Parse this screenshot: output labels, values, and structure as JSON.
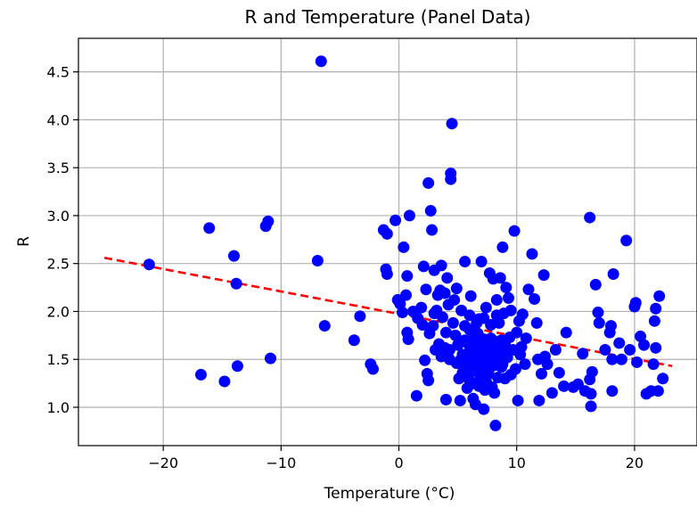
{
  "chart_data": {
    "type": "scatter",
    "title": "R and Temperature (Panel Data)",
    "xlabel": "Temperature (°C)",
    "ylabel": "R",
    "xlim": [
      -27.2,
      25.3
    ],
    "ylim": [
      0.6,
      4.85
    ],
    "xticks": [
      -20,
      -10,
      0,
      10,
      20
    ],
    "xtick_labels": [
      "−20",
      "−10",
      "0",
      "10",
      "20"
    ],
    "yticks": [
      1.0,
      1.5,
      2.0,
      2.5,
      3.0,
      3.5,
      4.0,
      4.5
    ],
    "ytick_labels": [
      "1.0",
      "1.5",
      "2.0",
      "2.5",
      "3.0",
      "3.5",
      "4.0",
      "4.5"
    ],
    "grid": true,
    "point_color": "#0000ff",
    "trend_color": "#ff0000",
    "trend_line": {
      "x": [
        -25.0,
        23.2
      ],
      "y": [
        2.56,
        1.43
      ]
    },
    "series": [
      {
        "points": [
          [
            -21.2,
            2.49
          ],
          [
            -16.8,
            1.34
          ],
          [
            -16.1,
            2.87
          ],
          [
            -14.8,
            1.27
          ],
          [
            -14.0,
            2.58
          ],
          [
            -13.8,
            2.29
          ],
          [
            -13.7,
            1.43
          ],
          [
            -11.3,
            2.89
          ],
          [
            -11.1,
            2.94
          ],
          [
            -10.9,
            1.51
          ],
          [
            -6.6,
            4.61
          ],
          [
            -6.9,
            2.53
          ],
          [
            -6.3,
            1.85
          ],
          [
            -3.8,
            1.7
          ],
          [
            -3.3,
            1.95
          ],
          [
            -2.4,
            1.45
          ],
          [
            -2.2,
            1.4
          ],
          [
            -1.3,
            2.85
          ],
          [
            -1.0,
            2.81
          ],
          [
            -1.1,
            2.44
          ],
          [
            -1.0,
            2.39
          ],
          [
            -0.3,
            2.95
          ],
          [
            -0.1,
            2.12
          ],
          [
            0.1,
            2.08
          ],
          [
            0.3,
            1.99
          ],
          [
            0.4,
            2.67
          ],
          [
            0.6,
            2.17
          ],
          [
            0.7,
            2.37
          ],
          [
            0.7,
            1.78
          ],
          [
            0.8,
            1.71
          ],
          [
            0.9,
            3.0
          ],
          [
            1.2,
            2.0
          ],
          [
            1.5,
            1.12
          ],
          [
            1.6,
            1.93
          ],
          [
            1.9,
            2.04
          ],
          [
            2.0,
            1.86
          ],
          [
            2.1,
            2.47
          ],
          [
            2.2,
            1.49
          ],
          [
            2.3,
            2.23
          ],
          [
            2.4,
            1.35
          ],
          [
            2.5,
            3.34
          ],
          [
            2.5,
            1.28
          ],
          [
            2.6,
            1.77
          ],
          [
            2.7,
            3.05
          ],
          [
            2.8,
            2.85
          ],
          [
            2.9,
            1.85
          ],
          [
            3.0,
            2.43
          ],
          [
            3.0,
            1.98
          ],
          [
            3.1,
            1.6
          ],
          [
            3.2,
            2.01
          ],
          [
            3.3,
            2.17
          ],
          [
            3.4,
            1.66
          ],
          [
            3.5,
            2.22
          ],
          [
            3.6,
            2.48
          ],
          [
            3.7,
            1.94
          ],
          [
            3.9,
            2.19
          ],
          [
            4.0,
            1.08
          ],
          [
            4.0,
            1.78
          ],
          [
            4.1,
            2.35
          ],
          [
            4.2,
            2.07
          ],
          [
            4.3,
            1.6
          ],
          [
            4.4,
            3.44
          ],
          [
            4.4,
            3.38
          ],
          [
            4.5,
            3.96
          ],
          [
            4.6,
            1.88
          ],
          [
            4.7,
            2.12
          ],
          [
            4.8,
            1.75
          ],
          [
            4.9,
            2.24
          ],
          [
            5.0,
            1.65
          ],
          [
            5.1,
            1.3
          ],
          [
            5.2,
            1.07
          ],
          [
            5.3,
            2.01
          ],
          [
            5.4,
            1.55
          ],
          [
            5.5,
            1.47
          ],
          [
            5.6,
            2.52
          ],
          [
            5.6,
            1.85
          ],
          [
            5.8,
            1.2
          ],
          [
            5.9,
            1.66
          ],
          [
            6.0,
            1.58
          ],
          [
            6.1,
            2.16
          ],
          [
            6.2,
            1.4
          ],
          [
            6.3,
            1.09
          ],
          [
            6.4,
            1.74
          ],
          [
            6.5,
            1.03
          ],
          [
            6.6,
            1.6
          ],
          [
            6.7,
            1.5
          ],
          [
            6.8,
            1.92
          ],
          [
            6.9,
            1.3
          ],
          [
            7.0,
            2.52
          ],
          [
            7.1,
            1.66
          ],
          [
            7.2,
            1.45
          ],
          [
            7.2,
            0.98
          ],
          [
            7.3,
            1.18
          ],
          [
            7.4,
            2.04
          ],
          [
            7.5,
            1.55
          ],
          [
            7.6,
            1.35
          ],
          [
            7.7,
            2.4
          ],
          [
            7.8,
            1.72
          ],
          [
            7.9,
            1.48
          ],
          [
            8.0,
            2.34
          ],
          [
            8.1,
            1.15
          ],
          [
            8.2,
            0.81
          ],
          [
            8.3,
            2.12
          ],
          [
            8.4,
            1.62
          ],
          [
            8.5,
            1.88
          ],
          [
            8.6,
            2.35
          ],
          [
            8.7,
            1.42
          ],
          [
            8.8,
            2.67
          ],
          [
            8.9,
            1.98
          ],
          [
            9.0,
            1.3
          ],
          [
            9.1,
            2.25
          ],
          [
            9.2,
            1.52
          ],
          [
            9.3,
            2.14
          ],
          [
            9.4,
            1.73
          ],
          [
            9.5,
            2.01
          ],
          [
            9.7,
            1.6
          ],
          [
            9.8,
            2.84
          ],
          [
            9.9,
            1.4
          ],
          [
            10.1,
            1.07
          ],
          [
            10.2,
            1.9
          ],
          [
            10.3,
            1.55
          ],
          [
            10.5,
            1.97
          ],
          [
            11.0,
            2.23
          ],
          [
            11.3,
            2.6
          ],
          [
            11.5,
            2.13
          ],
          [
            11.7,
            1.88
          ],
          [
            11.8,
            1.5
          ],
          [
            11.9,
            1.07
          ],
          [
            12.1,
            1.35
          ],
          [
            12.3,
            2.38
          ],
          [
            12.4,
            1.53
          ],
          [
            12.6,
            1.45
          ],
          [
            13.0,
            1.15
          ],
          [
            13.3,
            1.6
          ],
          [
            13.6,
            1.36
          ],
          [
            14.0,
            1.22
          ],
          [
            14.2,
            1.78
          ],
          [
            14.8,
            1.21
          ],
          [
            15.2,
            1.24
          ],
          [
            15.6,
            1.56
          ],
          [
            15.8,
            1.17
          ],
          [
            16.2,
            1.29
          ],
          [
            16.2,
            2.98
          ],
          [
            16.3,
            1.01
          ],
          [
            16.3,
            1.14
          ],
          [
            16.4,
            1.37
          ],
          [
            16.7,
            2.28
          ],
          [
            16.9,
            1.99
          ],
          [
            17.0,
            1.88
          ],
          [
            17.5,
            1.6
          ],
          [
            17.9,
            1.78
          ],
          [
            18.0,
            1.85
          ],
          [
            18.1,
            1.5
          ],
          [
            18.1,
            1.17
          ],
          [
            18.2,
            2.39
          ],
          [
            18.7,
            1.67
          ],
          [
            18.9,
            1.5
          ],
          [
            19.3,
            2.74
          ],
          [
            19.6,
            1.6
          ],
          [
            20.0,
            2.05
          ],
          [
            20.1,
            2.09
          ],
          [
            20.2,
            1.47
          ],
          [
            20.5,
            1.74
          ],
          [
            20.8,
            1.65
          ],
          [
            21.0,
            1.14
          ],
          [
            21.4,
            1.17
          ],
          [
            21.6,
            1.45
          ],
          [
            21.7,
            1.9
          ],
          [
            21.8,
            1.62
          ],
          [
            22.0,
            1.17
          ],
          [
            22.1,
            2.16
          ],
          [
            22.4,
            1.3
          ],
          [
            21.8,
            2.03
          ],
          [
            5.2,
            1.49
          ],
          [
            5.4,
            1.36
          ],
          [
            5.6,
            1.7
          ],
          [
            5.7,
            1.42
          ],
          [
            5.8,
            1.55
          ],
          [
            5.9,
            1.3
          ],
          [
            6.0,
            1.81
          ],
          [
            6.1,
            1.45
          ],
          [
            6.2,
            1.62
          ],
          [
            6.3,
            1.52
          ],
          [
            6.4,
            1.38
          ],
          [
            6.5,
            1.68
          ],
          [
            6.6,
            1.44
          ],
          [
            6.7,
            1.77
          ],
          [
            6.8,
            1.56
          ],
          [
            6.9,
            1.4
          ],
          [
            7.0,
            1.63
          ],
          [
            7.1,
            1.52
          ],
          [
            7.2,
            1.71
          ],
          [
            7.3,
            1.48
          ],
          [
            7.4,
            1.59
          ],
          [
            7.5,
            1.37
          ],
          [
            7.6,
            1.66
          ],
          [
            7.7,
            1.53
          ],
          [
            7.8,
            1.42
          ],
          [
            7.9,
            1.61
          ],
          [
            8.0,
            1.5
          ],
          [
            8.1,
            1.69
          ],
          [
            8.2,
            1.44
          ],
          [
            8.3,
            1.58
          ],
          [
            8.4,
            1.47
          ],
          [
            8.5,
            1.63
          ],
          [
            8.6,
            1.52
          ],
          [
            8.7,
            1.7
          ],
          [
            8.8,
            1.45
          ],
          [
            8.9,
            1.58
          ],
          [
            9.0,
            1.66
          ],
          [
            6.3,
            1.25
          ],
          [
            6.8,
            1.22
          ],
          [
            7.4,
            1.27
          ],
          [
            7.9,
            1.21
          ],
          [
            8.4,
            1.31
          ],
          [
            6.0,
            1.96
          ],
          [
            6.6,
            1.88
          ],
          [
            7.2,
            1.93
          ],
          [
            7.8,
            1.86
          ],
          [
            8.3,
            1.96
          ],
          [
            3.6,
            1.53
          ],
          [
            3.9,
            1.62
          ],
          [
            4.3,
            1.5
          ],
          [
            4.9,
            1.46
          ],
          [
            10.0,
            1.78
          ],
          [
            10.4,
            1.63
          ],
          [
            10.7,
            1.45
          ],
          [
            9.5,
            1.34
          ],
          [
            10.8,
            1.72
          ]
        ]
      }
    ]
  }
}
